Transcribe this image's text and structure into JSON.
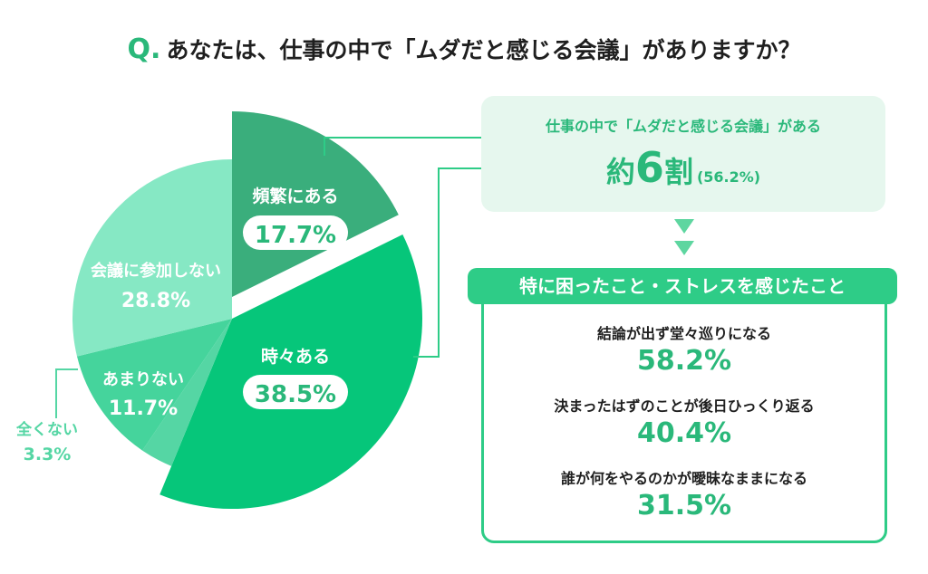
{
  "question": {
    "mark": "Q.",
    "text": "あなたは、仕事の中で「ムダだと感じる会議」がありますか？"
  },
  "chart_data": {
    "type": "pie",
    "slices": [
      {
        "label": "頻繁にある",
        "value": 17.7,
        "display": "17.7%",
        "color": "#3aae7c"
      },
      {
        "label": "時々ある",
        "value": 38.5,
        "display": "38.5%",
        "color": "#06c67a"
      },
      {
        "label": "全くない",
        "value": 3.3,
        "display": "3.3%",
        "color": "#55d6a4"
      },
      {
        "label": "あまりない",
        "value": 11.7,
        "display": "11.7%",
        "color": "#45d49c"
      },
      {
        "label": "会議に参加しない",
        "value": 28.8,
        "display": "28.8%",
        "color": "#86e8c4"
      }
    ]
  },
  "summary": {
    "line1": "仕事の中で「ムダだと感じる会議」がある",
    "main_prefix": "約",
    "main_num": "6",
    "main_suffix": "割",
    "main_paren": "(56.2%)"
  },
  "stress": {
    "header": "特に困ったこと・ストレスを感じたこと",
    "items": [
      {
        "label": "結論が出ず堂々巡りになる",
        "value": "58.2%"
      },
      {
        "label": "決まったはずのことが後日ひっくり返る",
        "value": "40.4%"
      },
      {
        "label": "誰が何をやるのかが曖昧なままになる",
        "value": "31.5%"
      }
    ]
  }
}
